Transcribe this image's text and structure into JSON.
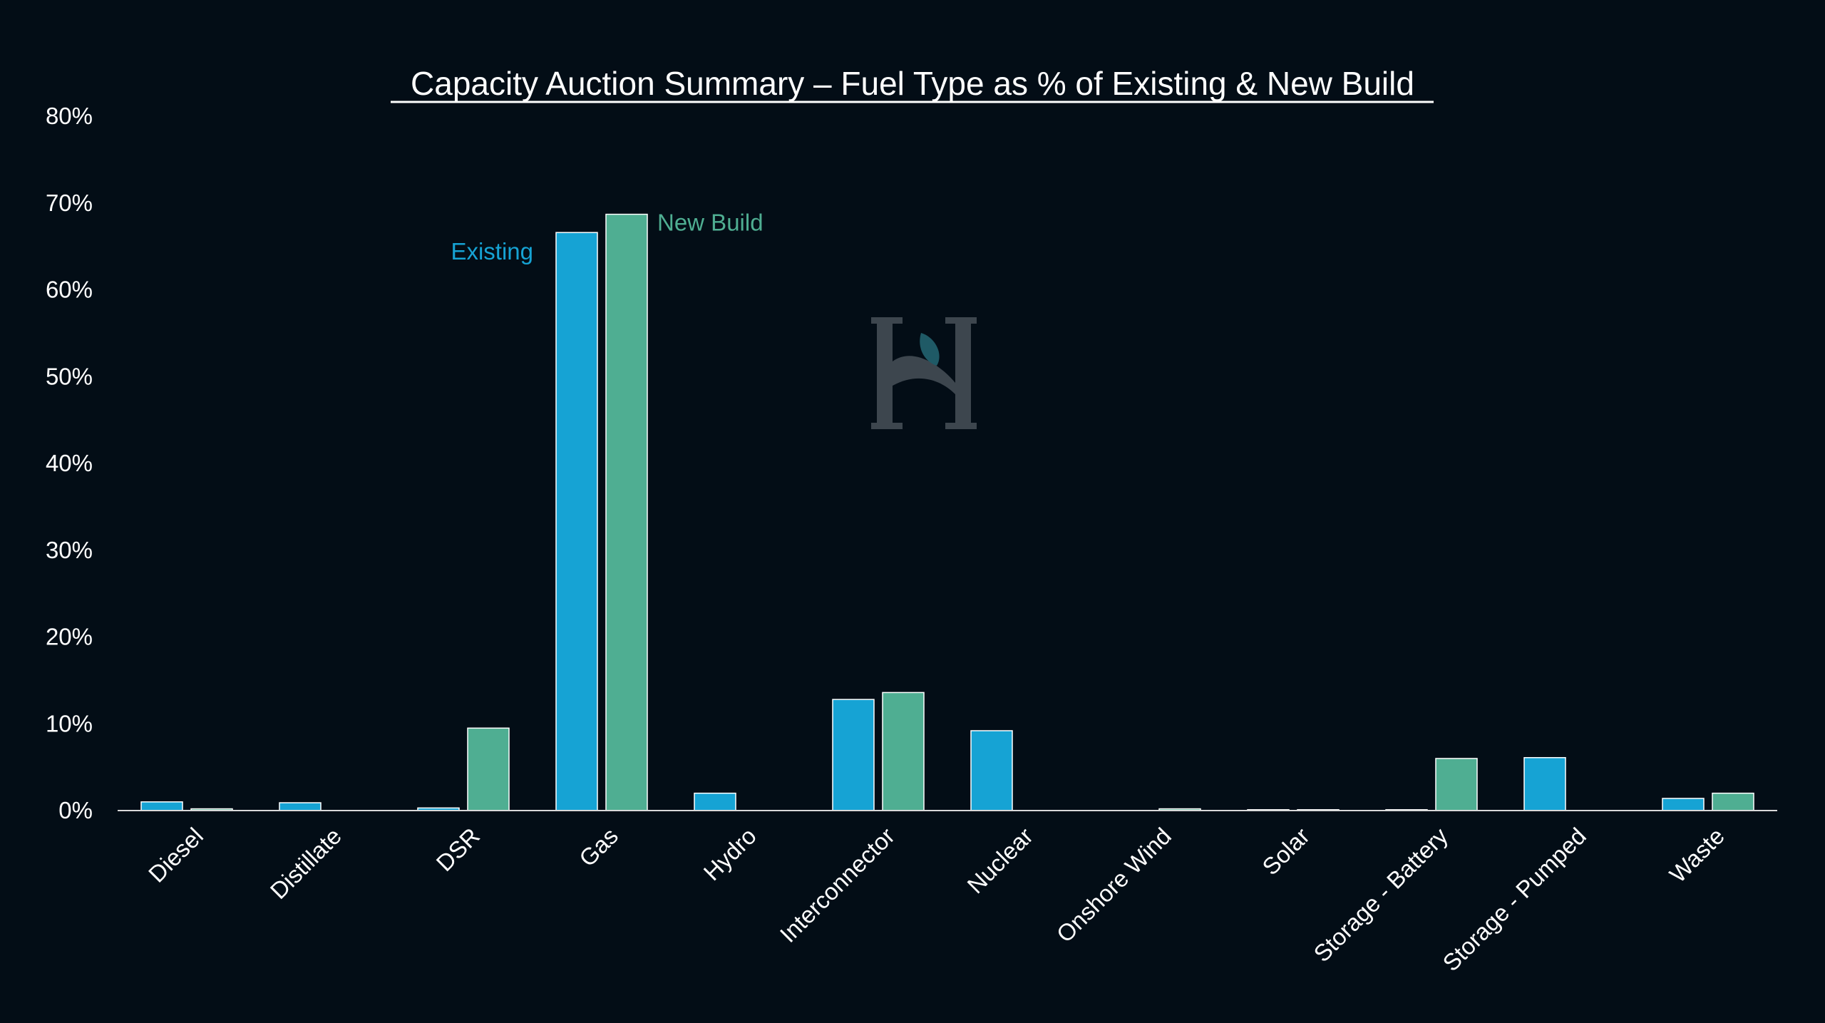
{
  "chart_data": {
    "type": "bar",
    "title": "Capacity Auction Summary – Fuel Type as % of Existing & New Build",
    "xlabel": "",
    "ylabel": "",
    "ylim": [
      0,
      80
    ],
    "yticks": [
      "0%",
      "10%",
      "20%",
      "30%",
      "40%",
      "50%",
      "60%",
      "70%",
      "80%"
    ],
    "grid": false,
    "legend": "none",
    "categories": [
      "Diesel",
      "Distillate",
      "DSR",
      "Gas",
      "Hydro",
      "Interconnector",
      "Nuclear",
      "Onshore Wind",
      "Solar",
      "Storage - Battery",
      "Storage - Pumped",
      "Waste"
    ],
    "series": [
      {
        "name": "Existing",
        "color": "#16a3d4",
        "values": [
          1.0,
          0.9,
          0.3,
          66.6,
          2.0,
          12.8,
          9.2,
          0.0,
          0.1,
          0.1,
          6.1,
          1.4
        ]
      },
      {
        "name": "New Build",
        "color": "#4fae92",
        "values": [
          0.2,
          0.0,
          9.5,
          68.7,
          0.0,
          13.6,
          0.0,
          0.2,
          0.1,
          6.0,
          0.0,
          2.0
        ]
      }
    ]
  },
  "colors": {
    "background": "#030d16",
    "axis": "#d9d9d9",
    "text": "#ffffff",
    "logo": "#3d464e",
    "logo_leaf": "#1f5a66"
  },
  "logo": {
    "icon": "hs-monogram-leaf-logo"
  }
}
